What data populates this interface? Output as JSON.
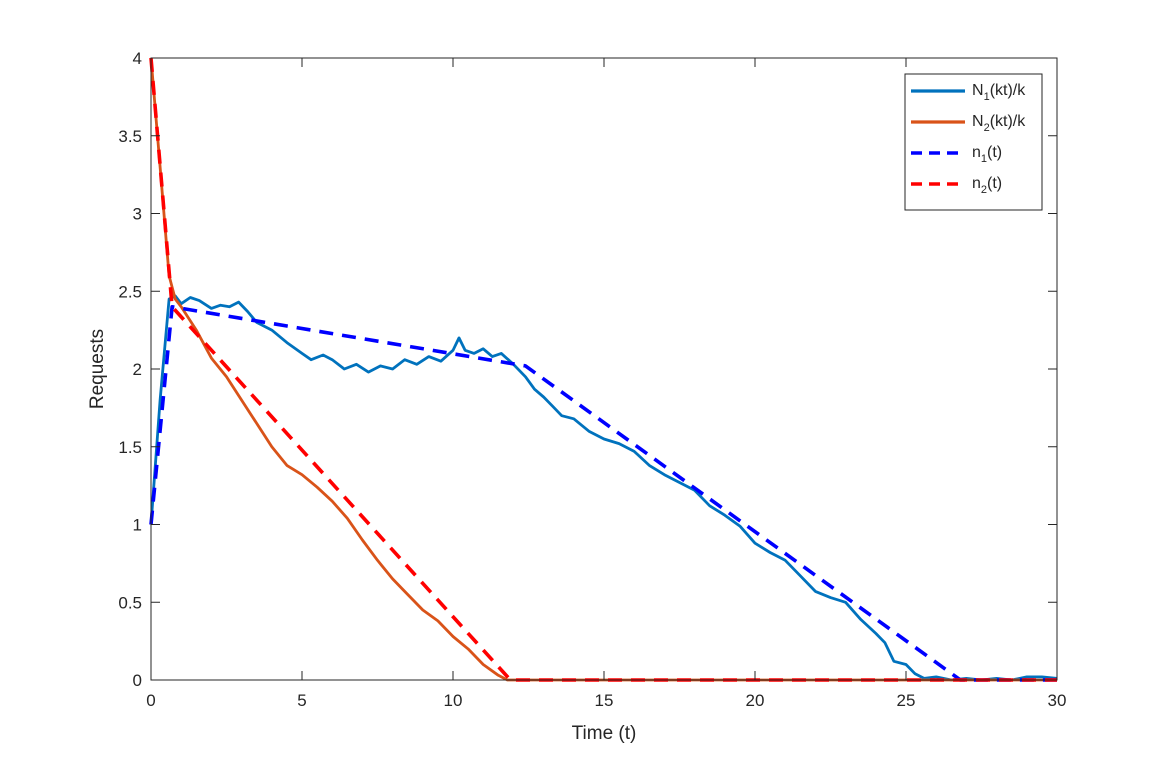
{
  "chart_data": {
    "type": "line",
    "title": "",
    "xlabel": "Time (t)",
    "ylabel": "Requests",
    "xlim": [
      0,
      30
    ],
    "ylim": [
      0,
      4
    ],
    "xticks": [
      0,
      5,
      10,
      15,
      20,
      25,
      30
    ],
    "yticks": [
      0,
      0.5,
      1,
      1.5,
      2,
      2.5,
      3,
      3.5,
      4
    ],
    "xtick_labels": [
      "0",
      "5",
      "10",
      "15",
      "20",
      "25",
      "30"
    ],
    "ytick_labels": [
      "0",
      "0.5",
      "1",
      "1.5",
      "2",
      "2.5",
      "3",
      "3.5",
      "4"
    ],
    "grid": false,
    "legend_position": "top-right",
    "series": [
      {
        "key": "N1",
        "legend_main": "N",
        "legend_sub": "1",
        "legend_tail": "(kt)/k",
        "color": "#0072BD",
        "style": "solid",
        "x": [
          0,
          0.3,
          0.6,
          0.8,
          1.0,
          1.3,
          1.6,
          2.0,
          2.3,
          2.6,
          2.9,
          3.2,
          3.5,
          4.0,
          4.5,
          5.0,
          5.3,
          5.7,
          6.0,
          6.4,
          6.8,
          7.2,
          7.6,
          8.0,
          8.4,
          8.8,
          9.2,
          9.6,
          10.0,
          10.2,
          10.4,
          10.7,
          11.0,
          11.3,
          11.6,
          12.0,
          12.4,
          12.7,
          13.0,
          13.3,
          13.6,
          14.0,
          14.5,
          15.0,
          15.5,
          16.0,
          16.5,
          17.0,
          17.5,
          18.0,
          18.5,
          19.0,
          19.5,
          20.0,
          20.5,
          21.0,
          21.5,
          22.0,
          22.5,
          23.0,
          23.5,
          24.0,
          24.3,
          24.6,
          25.0,
          25.3,
          25.6,
          26.0,
          26.5,
          27.0,
          27.5,
          28.0,
          28.5,
          29.0,
          29.5,
          30.0
        ],
        "y": [
          1.0,
          1.8,
          2.45,
          2.47,
          2.42,
          2.46,
          2.44,
          2.39,
          2.41,
          2.4,
          2.43,
          2.37,
          2.3,
          2.25,
          2.17,
          2.1,
          2.06,
          2.09,
          2.06,
          2.0,
          2.03,
          1.98,
          2.02,
          2.0,
          2.06,
          2.03,
          2.08,
          2.05,
          2.12,
          2.2,
          2.12,
          2.1,
          2.13,
          2.08,
          2.1,
          2.03,
          1.95,
          1.87,
          1.82,
          1.76,
          1.7,
          1.68,
          1.6,
          1.55,
          1.52,
          1.47,
          1.38,
          1.32,
          1.27,
          1.22,
          1.12,
          1.06,
          0.99,
          0.88,
          0.82,
          0.77,
          0.67,
          0.57,
          0.53,
          0.5,
          0.39,
          0.3,
          0.24,
          0.12,
          0.1,
          0.04,
          0.01,
          0.02,
          0.0,
          0.01,
          0.0,
          0.01,
          0.0,
          0.02,
          0.02,
          0.01
        ]
      },
      {
        "key": "N2",
        "legend_main": "N",
        "legend_sub": "2",
        "legend_tail": "(kt)/k",
        "color": "#D95319",
        "style": "solid",
        "x": [
          0,
          0.3,
          0.6,
          0.8,
          1.0,
          1.5,
          2.0,
          2.5,
          3.0,
          3.5,
          4.0,
          4.5,
          5.0,
          5.5,
          6.0,
          6.5,
          7.0,
          7.5,
          8.0,
          8.5,
          9.0,
          9.5,
          10.0,
          10.5,
          11.0,
          11.5,
          11.8,
          12.0,
          15.0,
          20.0,
          25.0,
          30.0
        ],
        "y": [
          4.0,
          3.3,
          2.6,
          2.45,
          2.4,
          2.25,
          2.07,
          1.95,
          1.8,
          1.65,
          1.5,
          1.38,
          1.32,
          1.24,
          1.15,
          1.04,
          0.9,
          0.77,
          0.65,
          0.55,
          0.45,
          0.38,
          0.28,
          0.2,
          0.1,
          0.03,
          0.0,
          0.0,
          0.0,
          0.0,
          0.0,
          0.0
        ]
      },
      {
        "key": "n1",
        "legend_main": "n",
        "legend_sub": "1",
        "legend_tail": "(t)",
        "color": "#0000FF",
        "style": "dashed",
        "x": [
          0,
          0.7,
          12.4,
          26.8,
          30.0
        ],
        "y": [
          1.0,
          2.4,
          2.02,
          0.0,
          0.0
        ]
      },
      {
        "key": "n2",
        "legend_main": "n",
        "legend_sub": "2",
        "legend_tail": "(t)",
        "color": "#FF0000",
        "style": "dashed",
        "x": [
          0,
          0.7,
          11.9,
          30.0
        ],
        "y": [
          4.0,
          2.4,
          0.0,
          0.0
        ]
      }
    ]
  }
}
